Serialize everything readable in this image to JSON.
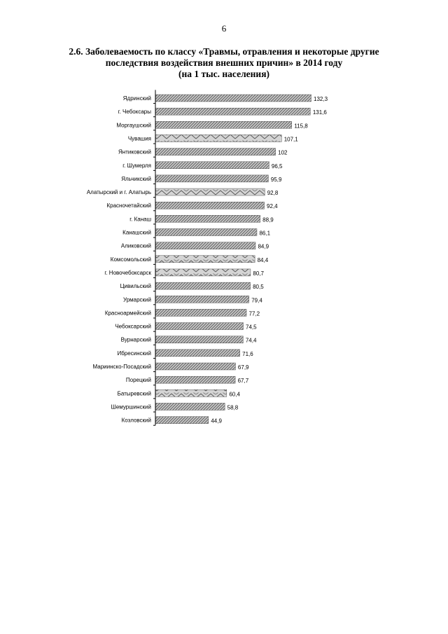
{
  "page": {
    "number": "6"
  },
  "heading": {
    "line1": "2.6. Заболеваемость по классу «Травмы, отравления и некоторые другие",
    "line2": "последствия воздействия внешних причин» в 2014 году",
    "line3": "(на 1 тыс. населения)"
  },
  "chart_data": {
    "type": "bar",
    "orientation": "horizontal",
    "title": "Заболеваемость по классу «Травмы, отравления и некоторые другие последствия воздействия внешних причин» в 2014 году (на 1 тыс. населения)",
    "categories": [
      "Ядринский",
      "г. Чебоксары",
      "Моргаушский",
      "Чувашия",
      "Янтиковский",
      "г. Шумерля",
      "Яльчикский",
      "Алатырский  и г. Алатырь",
      "Красночетайский",
      "г. Канаш",
      "Канашский",
      "Аликовский",
      "Комсомольский",
      "г. Новочебоксарск",
      "Цивильский",
      "Урмарский",
      "Красноармейский",
      "Чебоксарский",
      "Вурнарский",
      "Ибресинский",
      "Мариинско-Посадский",
      "Порецкий",
      "Батыревский",
      "Шемуршинский",
      "Козловский"
    ],
    "values": [
      132.3,
      131.6,
      115.8,
      107.1,
      102,
      96.5,
      95.9,
      92.8,
      92.4,
      88.9,
      86.1,
      84.9,
      84.4,
      80.7,
      80.5,
      79.4,
      77.2,
      74.5,
      74.4,
      71.6,
      67.9,
      67.7,
      60.4,
      58.8,
      44.9
    ],
    "value_labels": [
      "132,3",
      "131,6",
      "115,8",
      "107,1",
      "102",
      "96,5",
      "95,9",
      "92,8",
      "92,4",
      "88,9",
      "86,1",
      "84,9",
      "84,4",
      "80,7",
      "80,5",
      "79,4",
      "77,2",
      "74,5",
      "74,4",
      "71,6",
      "67,9",
      "67,7",
      "60,4",
      "58,8",
      "44,9"
    ],
    "highlight": [
      "Чувашия",
      "Алатырский  и г. Алатырь",
      "Комсомольский",
      "г. Новочебоксарск",
      "Батыревский"
    ],
    "xlim": [
      0,
      140
    ],
    "xlabel": "",
    "ylabel": "",
    "grid": false,
    "legend": "none",
    "colors": {
      "bar_fill": "#c8c8c8",
      "hatch": "#555555",
      "highlight_fill": "#d4d4d4",
      "axis": "#000000"
    }
  }
}
